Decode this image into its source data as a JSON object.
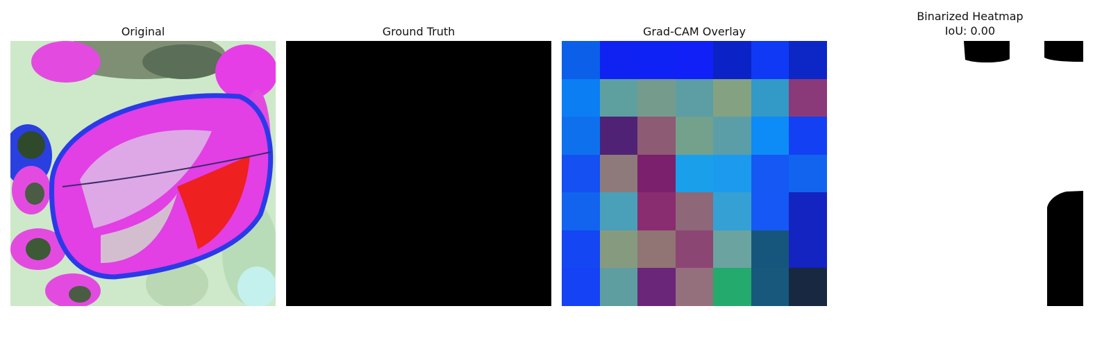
{
  "panels": {
    "original": {
      "title": "Original"
    },
    "ground_truth": {
      "title": "Ground Truth"
    },
    "gradcam": {
      "title": "Grad-CAM Overlay",
      "cells": [
        [
          "#0b5fe8",
          "#0f22f2",
          "#0f22f5",
          "#1020f6",
          "#0b22c6",
          "#0f39f4",
          "#0c27c6"
        ],
        [
          "#0b7ef3",
          "#5ea0a0",
          "#759b8c",
          "#5c9ea4",
          "#84a281",
          "#3399c6",
          "#8a3a78"
        ],
        [
          "#0f70ee",
          "#502276",
          "#8d5b74",
          "#74a18c",
          "#5c9ea8",
          "#0d8bf6",
          "#1440f4"
        ],
        [
          "#1450f2",
          "#8e7a7a",
          "#7a206c",
          "#1aa0ea",
          "#1c9aee",
          "#1558f4",
          "#1264ee"
        ],
        [
          "#1264ee",
          "#4aa0b8",
          "#8a2c70",
          "#8e6878",
          "#35a0d4",
          "#1658f6",
          "#1424c0"
        ],
        [
          "#1446f4",
          "#869a80",
          "#917474",
          "#8c4674",
          "#6ba3a0",
          "#17567c",
          "#1424c0"
        ],
        [
          "#1542f4",
          "#5e9ea0",
          "#6a2678",
          "#94707c",
          "#24aa6c",
          "#17587c",
          "#172840"
        ]
      ]
    },
    "binarized": {
      "title_line1": "Binarized Heatmap",
      "title_line2": "IoU: 0.00"
    }
  },
  "colors": {
    "background": "#ffffff",
    "mask": "#000000"
  }
}
